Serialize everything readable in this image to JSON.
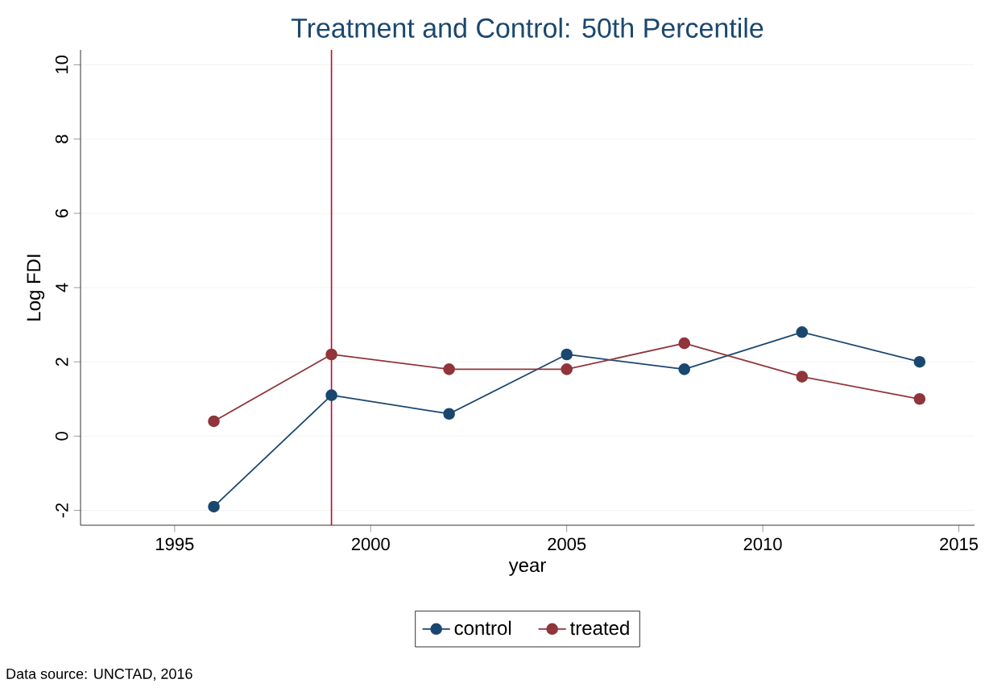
{
  "chart_data": {
    "type": "line",
    "title": "Treatment and Control: 50th Percentile",
    "xlabel": "year",
    "ylabel": "Log FDI",
    "x": [
      1996,
      1999,
      2002,
      2005,
      2008,
      2011,
      2014
    ],
    "series": [
      {
        "name": "control",
        "color": "#1a476f",
        "values": [
          -1.9,
          1.1,
          0.6,
          2.2,
          1.8,
          2.8,
          2.0
        ]
      },
      {
        "name": "treated",
        "color": "#90353b",
        "values": [
          0.4,
          2.2,
          1.8,
          1.8,
          2.5,
          1.6,
          1.0
        ]
      }
    ],
    "xlim": [
      1992.6,
      2015.4
    ],
    "ylim": [
      -2.4,
      10.4
    ],
    "xticks": [
      1995,
      2000,
      2005,
      2010,
      2015
    ],
    "yticks": [
      -2,
      0,
      2,
      4,
      6,
      8,
      10
    ],
    "ref_lines": [
      {
        "axis": "x",
        "value": 1999,
        "color": "#c10534"
      }
    ],
    "grid": "y",
    "legend": "bottom",
    "marker": "circle",
    "line_style": "solid",
    "annotations": [
      "Data source: UNCTAD, 2016"
    ]
  }
}
